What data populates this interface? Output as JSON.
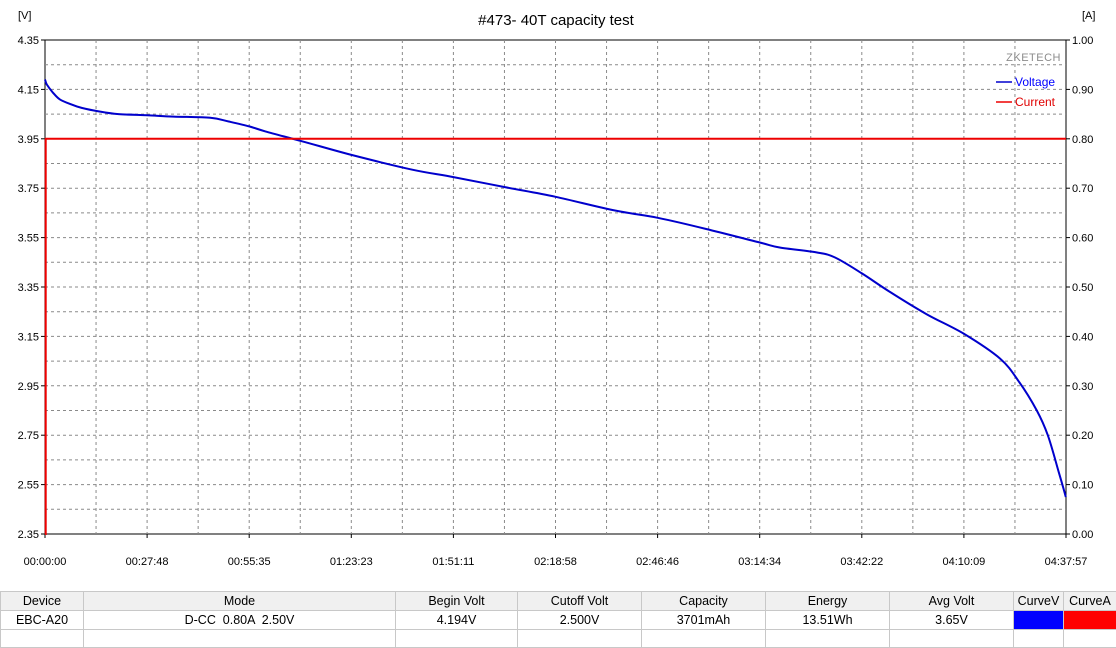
{
  "chart_data": {
    "type": "line",
    "title": "#473- 40T capacity test",
    "brand": "ZKETECH",
    "y_left_unit": "[V]",
    "y_right_unit": "[A]",
    "y_left_ticks": [
      "4.35",
      "4.15",
      "3.95",
      "3.75",
      "3.55",
      "3.35",
      "3.15",
      "2.95",
      "2.75",
      "2.55",
      "2.35"
    ],
    "y_right_ticks": [
      "1.00",
      "0.90",
      "0.80",
      "0.70",
      "0.60",
      "0.50",
      "0.40",
      "0.30",
      "0.20",
      "0.10",
      "0.00"
    ],
    "x_ticks": [
      "00:00:00",
      "00:27:48",
      "00:55:35",
      "01:23:23",
      "01:51:11",
      "02:18:58",
      "02:46:46",
      "03:14:34",
      "03:42:22",
      "04:10:09",
      "04:37:57"
    ],
    "xlim_min": [
      0,
      277.95
    ],
    "ylim_left": [
      2.35,
      4.35
    ],
    "ylim_right": [
      0.0,
      1.0
    ],
    "grid": true,
    "legend_position": "top-right",
    "series": [
      {
        "name": "Voltage",
        "color": "#0000cc",
        "axis": "left",
        "x_min": [
          0,
          0.5,
          2,
          4,
          7,
          10,
          15,
          20,
          27.8,
          35,
          45,
          50,
          55.6,
          60,
          70,
          83.4,
          100,
          111.2,
          125,
          139,
          155,
          166.8,
          180,
          194.6,
          200,
          210,
          215,
          222.4,
          230,
          240,
          250.2,
          260,
          265,
          270,
          273,
          276,
          277.9
        ],
        "y": [
          4.19,
          4.17,
          4.14,
          4.11,
          4.09,
          4.075,
          4.06,
          4.05,
          4.045,
          4.04,
          4.035,
          4.02,
          4.0,
          3.98,
          3.94,
          3.885,
          3.825,
          3.795,
          3.755,
          3.715,
          3.66,
          3.63,
          3.585,
          3.53,
          3.51,
          3.49,
          3.47,
          3.405,
          3.33,
          3.24,
          3.16,
          3.06,
          2.97,
          2.85,
          2.75,
          2.6,
          2.5
        ]
      },
      {
        "name": "Current",
        "color": "#ee0000",
        "axis": "right",
        "x_min": [
          0,
          0.2,
          0.2,
          277.95
        ],
        "y": [
          0.0,
          0.0,
          0.8,
          0.8
        ]
      }
    ]
  },
  "info_table": {
    "headers": [
      "Device",
      "Mode",
      "Begin Volt",
      "Cutoff Volt",
      "Capacity",
      "Energy",
      "Avg Volt",
      "CurveV",
      "CurveA"
    ],
    "row": {
      "device": "EBC-A20",
      "mode": "D-CC  0.80A  2.50V",
      "begin_volt": "4.194V",
      "cutoff_volt": "2.500V",
      "capacity": "3701mAh",
      "energy": "13.51Wh",
      "avg_volt": "3.65V"
    },
    "curve_v_color": "#0000ff",
    "curve_a_color": "#ff0000"
  }
}
